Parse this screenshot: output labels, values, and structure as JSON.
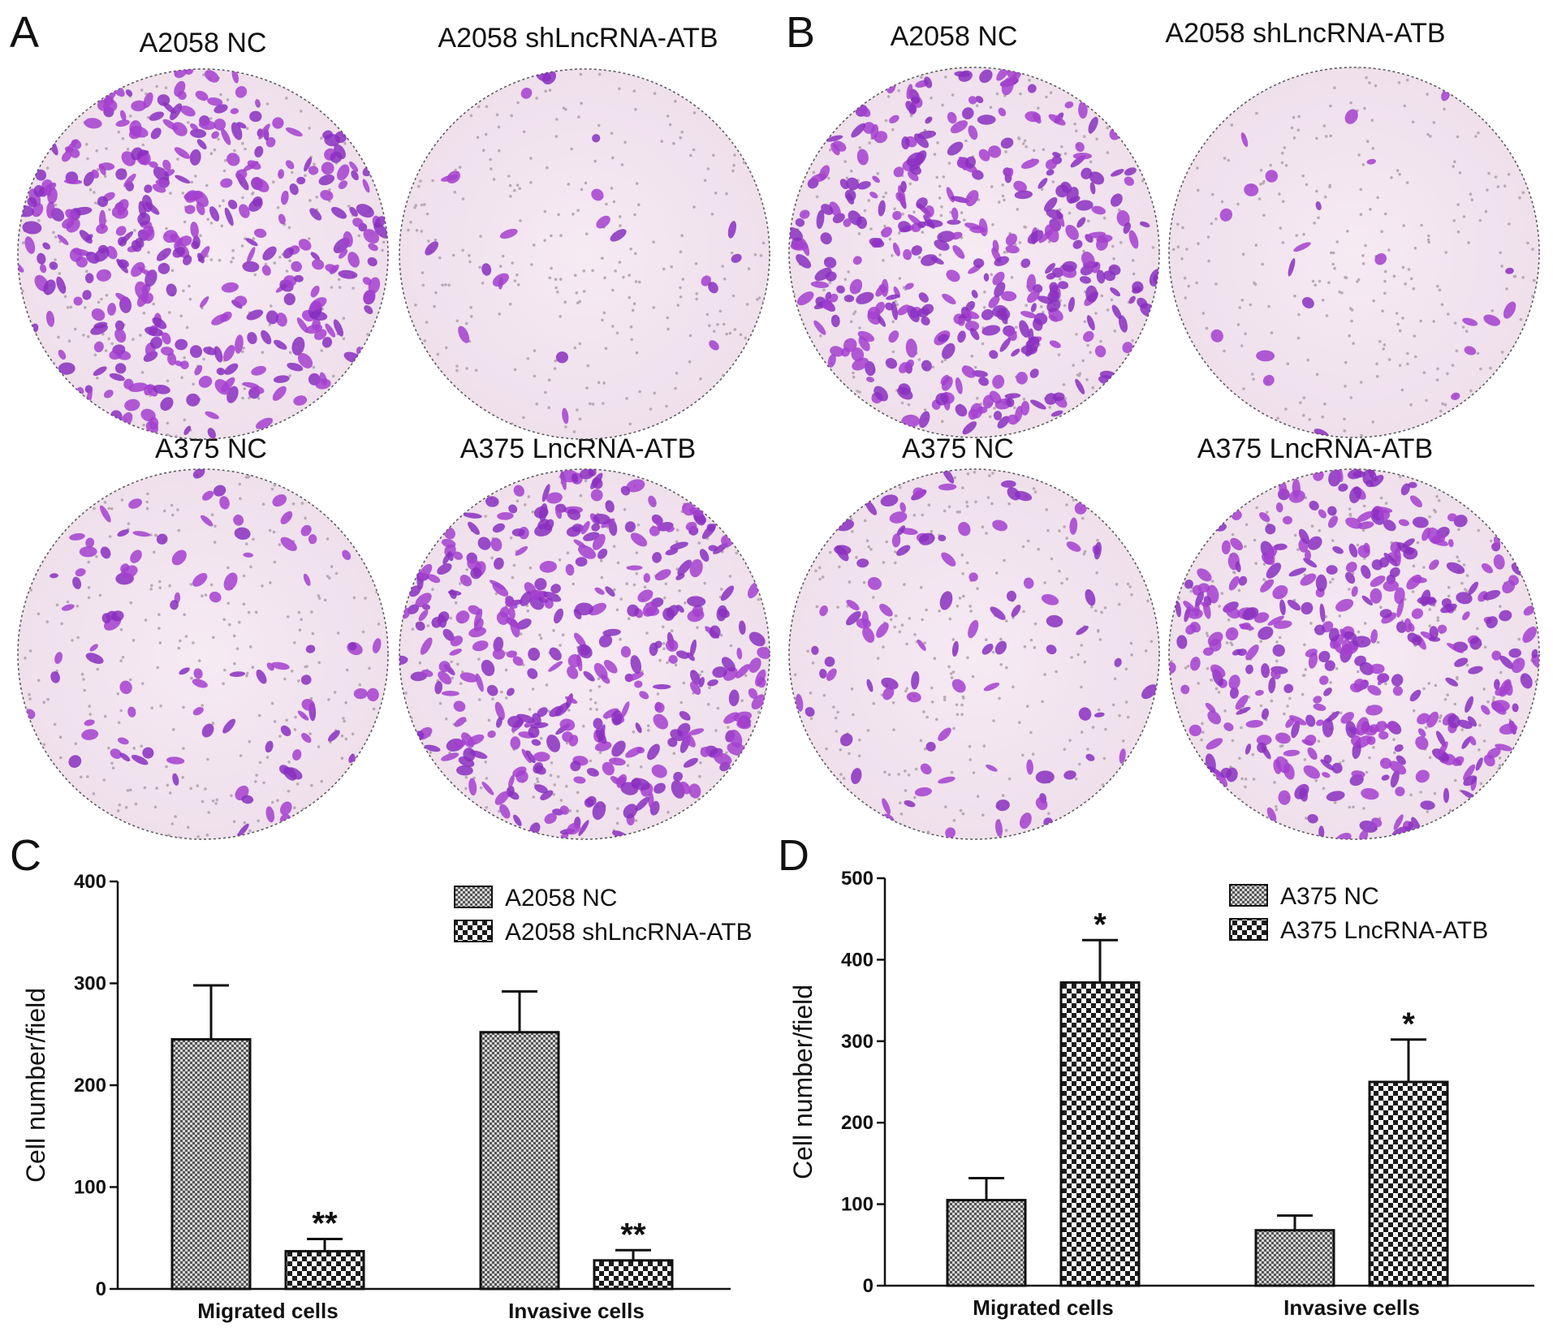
{
  "panels": {
    "A": {
      "letter": "A",
      "images": [
        {
          "title": "A2058 NC",
          "density": "high"
        },
        {
          "title": "A2058 shLncRNA-ATB",
          "density": "low"
        },
        {
          "title": "A375 NC",
          "density": "medium"
        },
        {
          "title": "A375 LncRNA-ATB",
          "density": "high"
        }
      ]
    },
    "B": {
      "letter": "B",
      "images": [
        {
          "title": "A2058 NC",
          "density": "high"
        },
        {
          "title": "A2058 shLncRNA-ATB",
          "density": "low"
        },
        {
          "title": "A375 NC",
          "density": "medium"
        },
        {
          "title": "A375 LncRNA-ATB",
          "density": "high"
        }
      ]
    },
    "C": {
      "letter": "C"
    },
    "D": {
      "letter": "D"
    }
  },
  "chart_data": [
    {
      "panel": "C",
      "type": "bar",
      "ylabel": "Cell number/field",
      "ylim": [
        0,
        400
      ],
      "yticks": [
        0,
        100,
        200,
        300,
        400
      ],
      "categories": [
        "Migrated cells",
        "Invasive cells"
      ],
      "legend_position": "top-right",
      "series": [
        {
          "name": "A2058 NC",
          "values": [
            245,
            252
          ],
          "errors": [
            53,
            40
          ],
          "pattern": "fine-checker",
          "significance": [
            "",
            ""
          ]
        },
        {
          "name": "A2058 shLncRNA-ATB",
          "values": [
            37,
            28
          ],
          "errors": [
            12,
            10
          ],
          "pattern": "coarse-checker",
          "significance": [
            "**",
            "**"
          ]
        }
      ]
    },
    {
      "panel": "D",
      "type": "bar",
      "ylabel": "Cell number/field",
      "ylim": [
        0,
        500
      ],
      "yticks": [
        0,
        100,
        200,
        300,
        400,
        500
      ],
      "categories": [
        "Migrated cells",
        "Invasive cells"
      ],
      "legend_position": "top-right",
      "series": [
        {
          "name": "A375 NC",
          "values": [
            105,
            68
          ],
          "errors": [
            27,
            18
          ],
          "pattern": "fine-checker",
          "significance": [
            "",
            ""
          ]
        },
        {
          "name": "A375 LncRNA-ATB",
          "values": [
            372,
            250
          ],
          "errors": [
            52,
            52
          ],
          "pattern": "coarse-checker",
          "significance": [
            "*",
            "*"
          ]
        }
      ]
    }
  ]
}
